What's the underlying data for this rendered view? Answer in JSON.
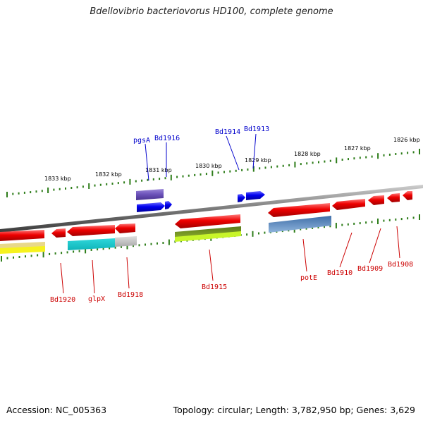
{
  "title": "Bdellovibrio bacteriovorus HD100, complete genome",
  "footer": {
    "accession": "Accession: NC_005363",
    "summary": "Topology: circular; Length: 3,782,950 bp; Genes: 3,629"
  },
  "colors": {
    "forward_label": "#0000cc",
    "reverse_label": "#cc0000",
    "tick": "#2e7d1a",
    "backbone": "#888888"
  },
  "scale_ticks": [
    {
      "label": "1833 kbp",
      "kbp": 1833
    },
    {
      "label": "1832 kbp",
      "kbp": 1832
    },
    {
      "label": "1831 kbp",
      "kbp": 1831
    },
    {
      "label": "1830 kbp",
      "kbp": 1830
    },
    {
      "label": "1829 kbp",
      "kbp": 1829
    },
    {
      "label": "1828 kbp",
      "kbp": 1828
    },
    {
      "label": "1827 kbp",
      "kbp": 1827
    },
    {
      "label": "1826 kbp",
      "kbp": 1826
    }
  ],
  "gene_labels_forward": [
    "pgsA",
    "Bd1916",
    "Bd1914",
    "Bd1913"
  ],
  "gene_labels_reverse": [
    "Bd1920",
    "glpX",
    "Bd1918",
    "Bd1915",
    "potE",
    "Bd1910",
    "Bd1909",
    "Bd1908"
  ]
}
